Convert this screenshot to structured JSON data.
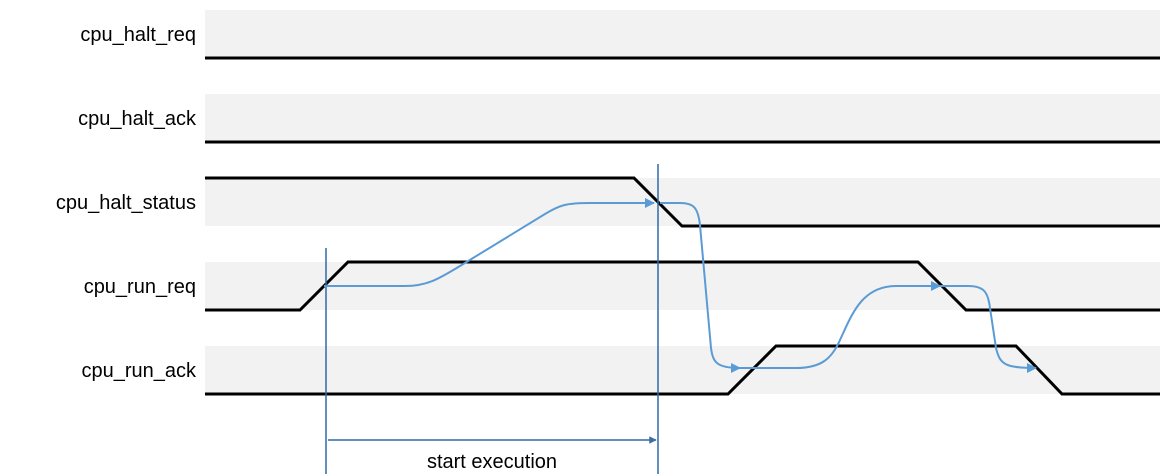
{
  "colors": {
    "lane_background": "#f2f2f2",
    "waveform": "#000000",
    "dependency_arrow": "#5b9bd5",
    "marker": "#2e6ba8",
    "span_arrow_head": "#3a6ea5"
  },
  "signals": [
    {
      "name": "cpu_halt_req"
    },
    {
      "name": "cpu_halt_ack"
    },
    {
      "name": "cpu_halt_status"
    },
    {
      "name": "cpu_run_req"
    },
    {
      "name": "cpu_run_ack"
    }
  ],
  "annotation": {
    "span_label": "start execution"
  }
}
